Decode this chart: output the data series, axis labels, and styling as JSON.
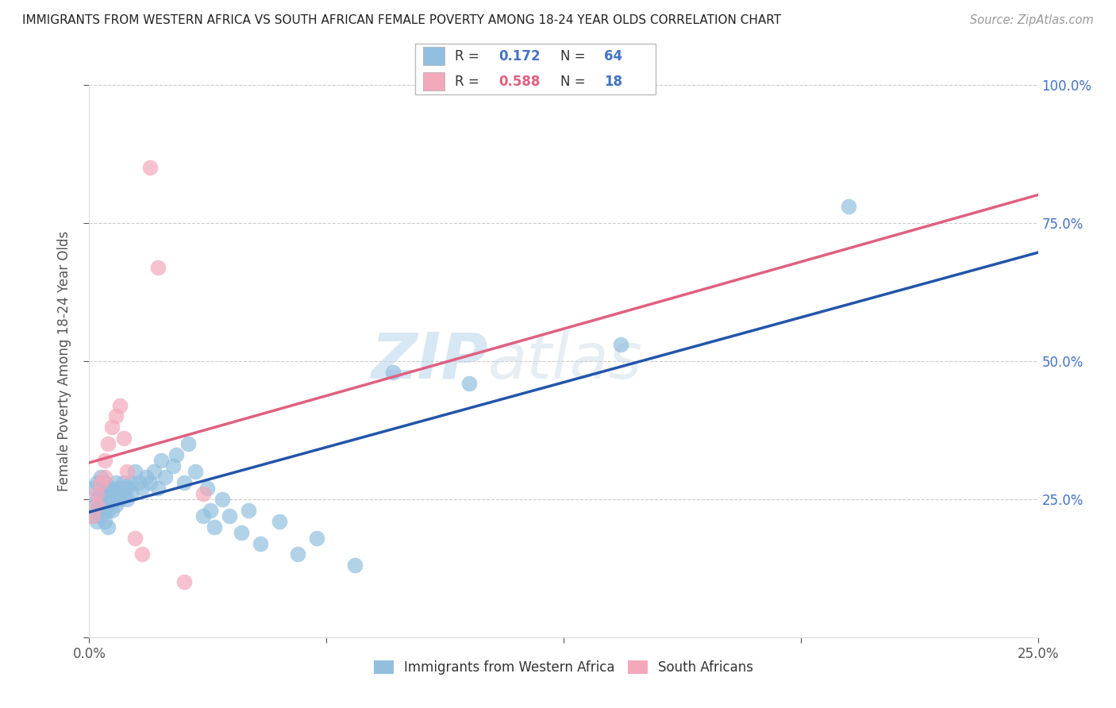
{
  "title": "IMMIGRANTS FROM WESTERN AFRICA VS SOUTH AFRICAN FEMALE POVERTY AMONG 18-24 YEAR OLDS CORRELATION CHART",
  "source": "Source: ZipAtlas.com",
  "ylabel": "Female Poverty Among 18-24 Year Olds",
  "xlim": [
    0,
    0.25
  ],
  "ylim": [
    0,
    1.0
  ],
  "blue_R": 0.172,
  "blue_N": 64,
  "pink_R": 0.588,
  "pink_N": 18,
  "blue_color": "#92bfdf",
  "pink_color": "#f4a8bb",
  "blue_line_color": "#2255aa",
  "pink_line_color": "#e06080",
  "watermark_zip": "ZIP",
  "watermark_atlas": "atlas",
  "legend_labels": [
    "Immigrants from Western Africa",
    "South Africans"
  ],
  "blue_scatter_x": [
    0.001,
    0.001,
    0.001,
    0.002,
    0.002,
    0.002,
    0.002,
    0.003,
    0.003,
    0.003,
    0.003,
    0.004,
    0.004,
    0.004,
    0.004,
    0.005,
    0.005,
    0.005,
    0.005,
    0.006,
    0.006,
    0.006,
    0.007,
    0.007,
    0.007,
    0.008,
    0.008,
    0.009,
    0.009,
    0.01,
    0.01,
    0.011,
    0.011,
    0.012,
    0.013,
    0.014,
    0.015,
    0.016,
    0.017,
    0.018,
    0.019,
    0.02,
    0.022,
    0.023,
    0.025,
    0.026,
    0.028,
    0.03,
    0.031,
    0.032,
    0.033,
    0.035,
    0.037,
    0.04,
    0.042,
    0.045,
    0.05,
    0.055,
    0.06,
    0.07,
    0.08,
    0.1,
    0.14,
    0.2
  ],
  "blue_scatter_y": [
    0.27,
    0.24,
    0.22,
    0.28,
    0.25,
    0.23,
    0.21,
    0.29,
    0.26,
    0.24,
    0.22,
    0.28,
    0.26,
    0.23,
    0.21,
    0.27,
    0.25,
    0.23,
    0.2,
    0.27,
    0.25,
    0.23,
    0.28,
    0.26,
    0.24,
    0.27,
    0.25,
    0.28,
    0.26,
    0.27,
    0.25,
    0.28,
    0.26,
    0.3,
    0.28,
    0.27,
    0.29,
    0.28,
    0.3,
    0.27,
    0.32,
    0.29,
    0.31,
    0.33,
    0.28,
    0.35,
    0.3,
    0.22,
    0.27,
    0.23,
    0.2,
    0.25,
    0.22,
    0.19,
    0.23,
    0.17,
    0.21,
    0.15,
    0.18,
    0.13,
    0.48,
    0.46,
    0.53,
    0.78
  ],
  "pink_scatter_x": [
    0.001,
    0.002,
    0.002,
    0.003,
    0.004,
    0.004,
    0.005,
    0.006,
    0.007,
    0.008,
    0.009,
    0.01,
    0.012,
    0.014,
    0.016,
    0.018,
    0.025,
    0.03
  ],
  "pink_scatter_y": [
    0.22,
    0.26,
    0.24,
    0.28,
    0.32,
    0.29,
    0.35,
    0.38,
    0.4,
    0.42,
    0.36,
    0.3,
    0.18,
    0.15,
    0.85,
    0.67,
    0.1,
    0.26
  ]
}
